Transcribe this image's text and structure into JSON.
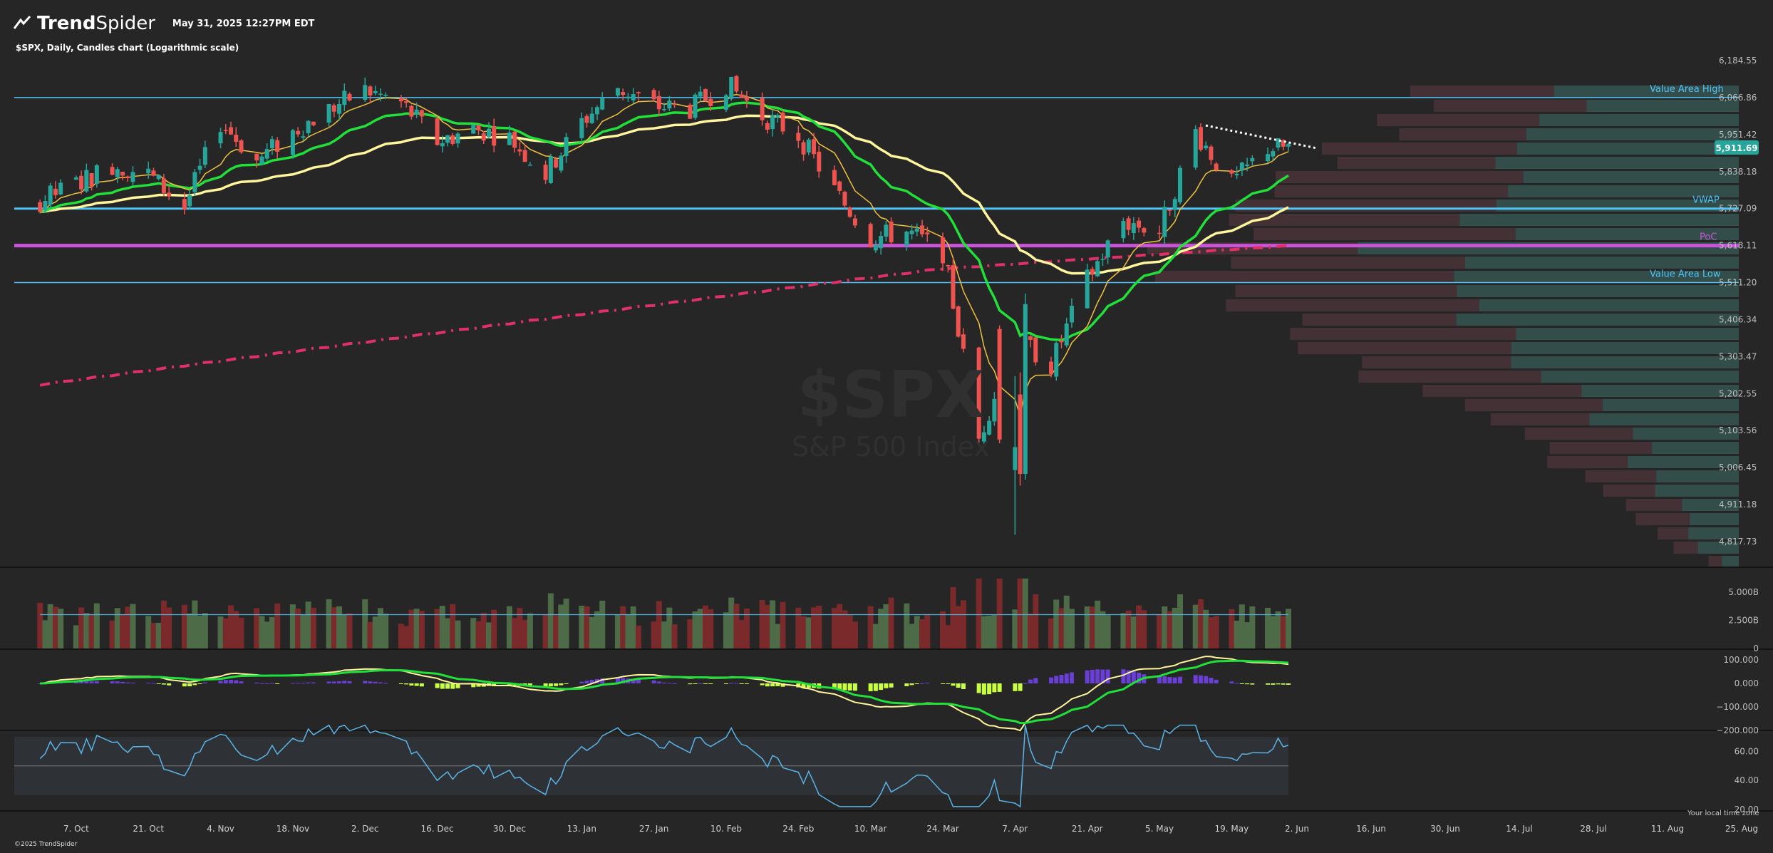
{
  "header": {
    "brand_bold": "Trend",
    "brand_light": "Spider",
    "datetime": "May 31, 2025 12:27PM EDT",
    "chart_subtitle": "$SPX, Daily, Candles chart (Logarithmic scale)"
  },
  "footer": {
    "copyright": "©2025 TrendSpider",
    "local_time_note": "Your local time zone"
  },
  "watermark": {
    "symbol": "$SPX",
    "name": "S&P 500 Index"
  },
  "colors": {
    "background": "#262626",
    "up_candle": "#26a69a",
    "down_candle": "#ef5350",
    "vwap": "#4fc3f7",
    "poc": "#c855d8",
    "ema_fast": "#f0c040",
    "ema_mid": "#22e03a",
    "sma_slow": "#fff59d",
    "sma_200": "#e0306a",
    "last_price_badge": "#26a69a",
    "macd_hist_pos": "#6a3fd6",
    "macd_hist_neg": "#c8ff40",
    "rsi": "#5ab4e8"
  },
  "chart_data": {
    "type": "candlestick",
    "title": "$SPX, Daily, Candles chart (Logarithmic scale)",
    "scale": "log",
    "price_axis_ticks": [
      "6,184.55",
      "6,066.86",
      "5,951.42",
      "5,838.18",
      "5,727.09",
      "5,618.11",
      "5,511.20",
      "5,406.34",
      "5,303.47",
      "5,202.55",
      "5,103.56",
      "5,006.45",
      "4,911.18",
      "4,817.73"
    ],
    "x_axis_ticks": [
      "7. Oct",
      "21. Oct",
      "4. Nov",
      "18. Nov",
      "2. Dec",
      "16. Dec",
      "30. Dec",
      "13. Jan",
      "27. Jan",
      "10. Feb",
      "24. Feb",
      "10. Mar",
      "24. Mar",
      "7. Apr",
      "21. Apr",
      "5. May",
      "19. May",
      "2. Jun",
      "16. Jun",
      "30. Jun",
      "14. Jul",
      "28. Jul",
      "11. Aug",
      "25. Aug"
    ],
    "last_price": "5,911.69",
    "levels": [
      {
        "label": "Value Area High",
        "value": 6066.86
      },
      {
        "label": "VWAP",
        "value": 5727.09
      },
      {
        "label": "PoC",
        "value": 5618.11
      },
      {
        "label": "Value Area Low",
        "value": 5511.2
      }
    ],
    "close_series": {
      "dates": [
        "2024-09-30",
        "2024-10-07",
        "2024-10-14",
        "2024-10-21",
        "2024-10-28",
        "2024-11-04",
        "2024-11-11",
        "2024-11-18",
        "2024-11-25",
        "2024-12-02",
        "2024-12-09",
        "2024-12-16",
        "2024-12-23",
        "2024-12-30",
        "2025-01-06",
        "2025-01-13",
        "2025-01-20",
        "2025-01-27",
        "2025-02-03",
        "2025-02-10",
        "2025-02-17",
        "2025-02-24",
        "2025-03-03",
        "2025-03-10",
        "2025-03-17",
        "2025-03-24",
        "2025-03-31",
        "2025-04-07",
        "2025-04-14",
        "2025-04-21",
        "2025-04-28",
        "2025-05-05",
        "2025-05-12",
        "2025-05-19",
        "2025-05-26"
      ],
      "values": [
        5750,
        5800,
        5860,
        5830,
        5730,
        5990,
        5870,
        5960,
        6030,
        6090,
        6050,
        5930,
        5970,
        5940,
        5830,
        5990,
        6100,
        6040,
        6030,
        6110,
        6010,
        5950,
        5780,
        5640,
        5660,
        5600,
        5080,
        5360,
        5280,
        5520,
        5690,
        5660,
        5960,
        5800,
        5911
      ]
    },
    "volume_axis_ticks": [
      "5.000B",
      "2.500B",
      "0"
    ],
    "macd_axis_ticks": [
      "100.000",
      "0.000",
      "−100.000",
      "−200.000"
    ],
    "rsi_axis_ticks": [
      "60.00",
      "40.00",
      "20.00"
    ]
  }
}
